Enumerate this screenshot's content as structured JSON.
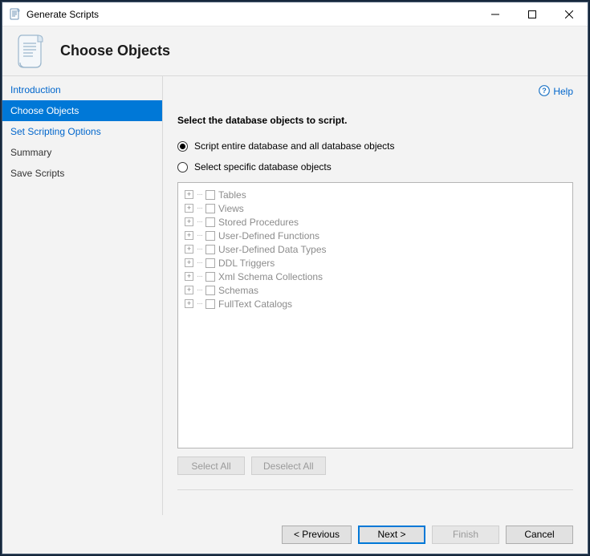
{
  "window": {
    "title": "Generate Scripts"
  },
  "header": {
    "page_title": "Choose Objects"
  },
  "help": {
    "label": "Help"
  },
  "sidebar": {
    "items": [
      {
        "label": "Introduction",
        "active": false,
        "link": true
      },
      {
        "label": "Choose Objects",
        "active": true,
        "link": false
      },
      {
        "label": "Set Scripting Options",
        "active": false,
        "link": true
      },
      {
        "label": "Summary",
        "active": false,
        "link": false
      },
      {
        "label": "Save Scripts",
        "active": false,
        "link": false
      }
    ]
  },
  "content": {
    "instruction": "Select the database objects to script.",
    "radios": [
      {
        "label": "Script entire database and all database objects",
        "selected": true
      },
      {
        "label": "Select specific database objects",
        "selected": false
      }
    ],
    "tree_enabled": false,
    "tree_items": [
      {
        "label": "Tables"
      },
      {
        "label": "Views"
      },
      {
        "label": "Stored Procedures"
      },
      {
        "label": "User-Defined Functions"
      },
      {
        "label": "User-Defined Data Types"
      },
      {
        "label": "DDL Triggers"
      },
      {
        "label": "Xml Schema Collections"
      },
      {
        "label": "Schemas"
      },
      {
        "label": "FullText Catalogs"
      }
    ],
    "select_all": "Select All",
    "deselect_all": "Deselect All"
  },
  "footer": {
    "previous": "< Previous",
    "next": "Next >",
    "finish": "Finish",
    "cancel": "Cancel"
  },
  "colors": {
    "accent": "#0078d7",
    "link": "#0066cc",
    "panel_bg": "#f3f3f3",
    "border": "#d9d9d9",
    "disabled_text": "#8c8c8c"
  }
}
